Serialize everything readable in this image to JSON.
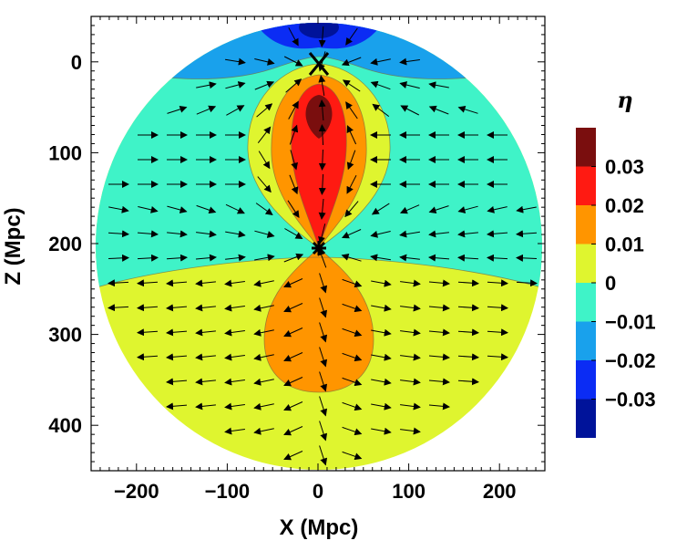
{
  "chart_data": {
    "type": "contour",
    "xlabel": "X (Mpc)",
    "ylabel": "Z (Mpc)",
    "xlim": [
      -250,
      250
    ],
    "ylim": [
      450,
      -50
    ],
    "x_ticks": [
      -200,
      -100,
      0,
      100,
      200
    ],
    "y_ticks": [
      0,
      100,
      200,
      300,
      400
    ],
    "x_tick_labels": [
      "−200",
      "−100",
      "0",
      "100",
      "200"
    ],
    "y_tick_labels": [
      "0",
      "100",
      "200",
      "300",
      "400"
    ],
    "domain": {
      "shape": "circle",
      "center": [
        0,
        200
      ],
      "radius": 250
    },
    "colorbar": {
      "title": "η",
      "labels": [
        "0.03",
        "0.02",
        "0.01",
        "0",
        "−0.01",
        "−0.02",
        "−0.03"
      ],
      "levels": [
        0.03,
        0.02,
        0.01,
        0,
        -0.01,
        -0.02,
        -0.03
      ],
      "bands": [
        {
          "range": [
            0.03,
            0.04
          ],
          "color": "#7a0e0e"
        },
        {
          "range": [
            0.02,
            0.03
          ],
          "color": "#ff1a12"
        },
        {
          "range": [
            0.01,
            0.02
          ],
          "color": "#ff9500"
        },
        {
          "range": [
            0.0,
            0.01
          ],
          "color": "#dff52f"
        },
        {
          "range": [
            -0.01,
            0.0
          ],
          "color": "#3ff3c8"
        },
        {
          "range": [
            -0.02,
            -0.01
          ],
          "color": "#19a1ec"
        },
        {
          "range": [
            -0.03,
            -0.02
          ],
          "color": "#0b2cf4"
        },
        {
          "range": [
            -0.04,
            -0.03
          ],
          "color": "#00139a"
        }
      ]
    },
    "critical_points": [
      {
        "x": 0,
        "z": 0,
        "marker": "X"
      },
      {
        "x": 0,
        "z": 200,
        "marker": "*"
      }
    ],
    "vector_field": "arrows converge to (0,0) and (0,200) from the sides; arrows point downward (increasing Z) below Z=200"
  }
}
